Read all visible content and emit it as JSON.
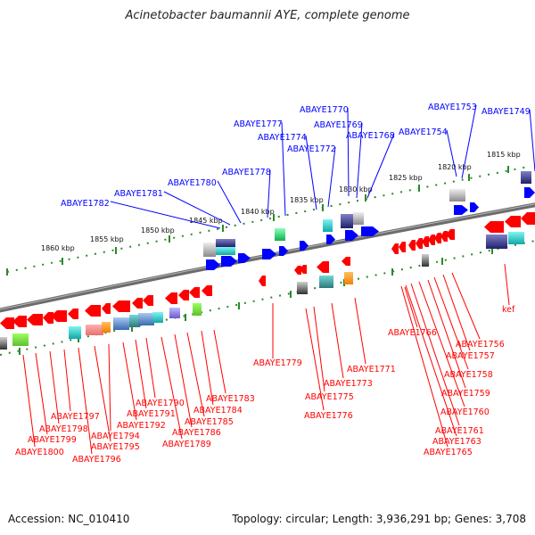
{
  "title": "Acinetobacter baumannii AYE, complete genome",
  "footer": {
    "accession": "Accession: NC_010410",
    "summary": "Topology: circular; Length: 3,936,291 bp; Genes: 3,708"
  },
  "colors": {
    "forward": "#0000ff",
    "reverse": "#ff0000",
    "backbone": "#777777",
    "tick": "#2a8a2a"
  },
  "kbp_labels": [
    "1815 kbp",
    "1820 kbp",
    "1825 kbp",
    "1830 kbp",
    "1835 kbp",
    "1840 kbp",
    "1845 kbp",
    "1850 kbp",
    "1855 kbp",
    "1860 kbp"
  ],
  "forward_genes": [
    "ABAYE1782",
    "ABAYE1781",
    "ABAYE1780",
    "ABAYE1778",
    "ABAYE1777",
    "ABAYE1774",
    "ABAYE1772",
    "ABAYE1770",
    "ABAYE1769",
    "ABAYE1768",
    "ABAYE1754",
    "ABAYE1753",
    "ABAYE1749"
  ],
  "reverse_genes": [
    "ABAYE1779",
    "ABAYE1771",
    "ABAYE1773",
    "ABAYE1775",
    "ABAYE1776",
    "ABAYE1766",
    "ABAYE1756",
    "ABAYE1757",
    "ABAYE1758",
    "ABAYE1759",
    "ABAYE1760",
    "ABAYE1761",
    "ABAYE1763",
    "ABAYE1765",
    "kef",
    "ABAYE1783",
    "ABAYE1784",
    "ABAYE1785",
    "ABAYE1786",
    "ABAYE1789",
    "ABAYE1790",
    "ABAYE1791",
    "ABAYE1792",
    "ABAYE1794",
    "ABAYE1795",
    "ABAYE1796",
    "ABAYE1797",
    "ABAYE1798",
    "ABAYE1799",
    "ABAYE1800"
  ]
}
